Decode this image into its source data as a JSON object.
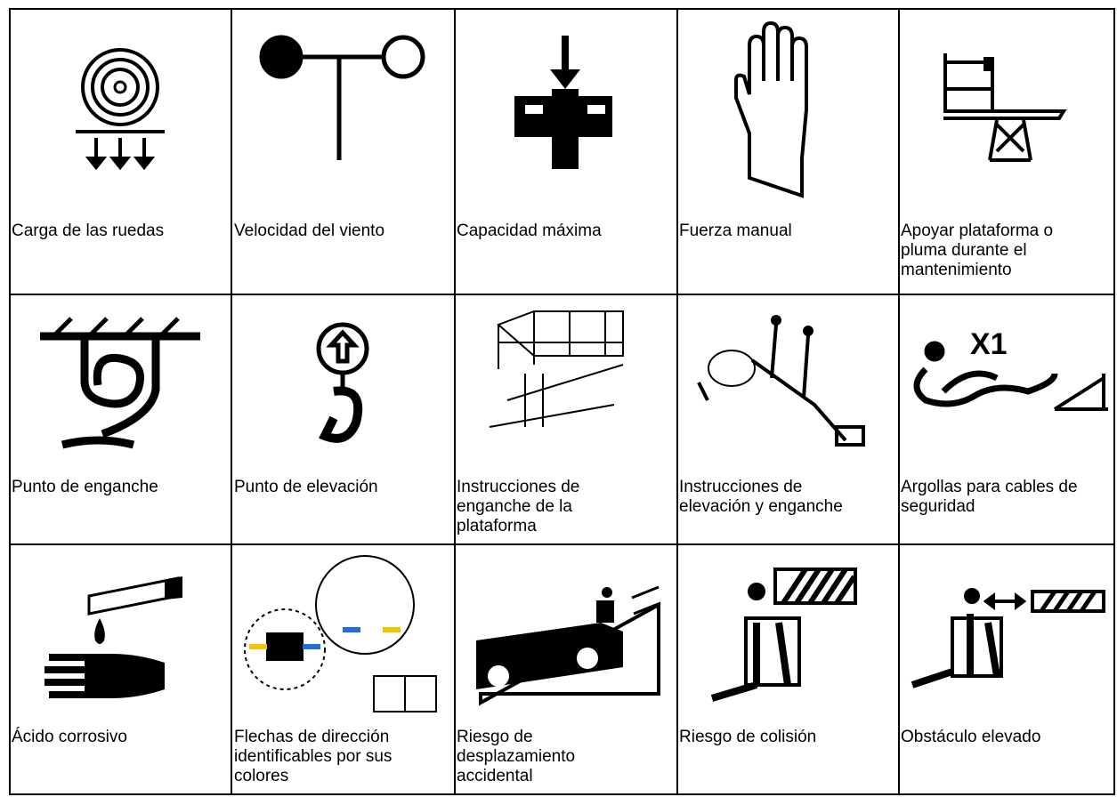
{
  "table": {
    "rows": [
      [
        "Carga de las ruedas",
        "Velocidad del viento",
        "Capacidad máxima",
        "Fuerza manual",
        "Apoyar plataforma o pluma durante el mantenimiento"
      ],
      [
        "Punto de enganche",
        "Punto de elevación",
        "Instrucciones de enganche de la plataforma",
        "Instrucciones de elevación y enganche",
        "Argollas para cables de seguridad"
      ],
      [
        "Ácido corrosivo",
        "Flechas de dirección identificables por sus colores",
        "Riesgo de desplazamiento accidental",
        "Riesgo de colisión",
        "Obstáculo elevado"
      ]
    ]
  }
}
